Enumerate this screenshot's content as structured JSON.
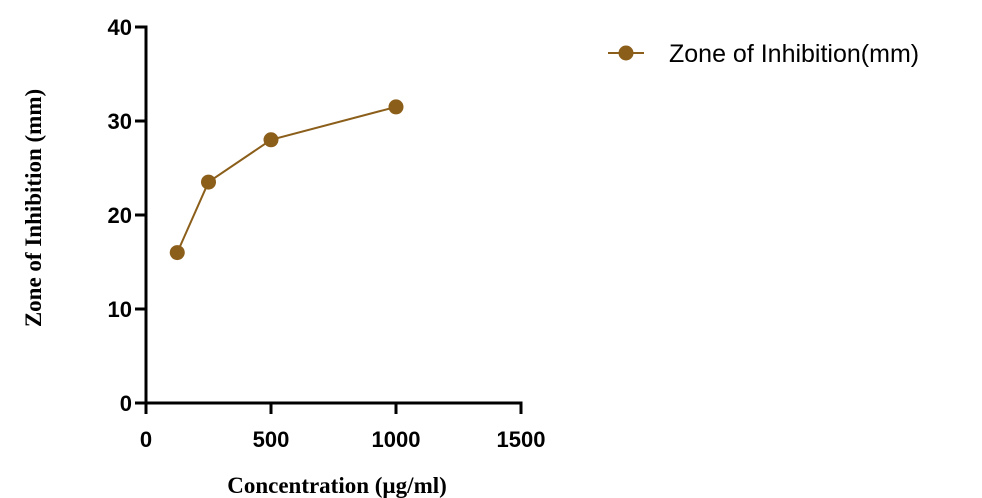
{
  "colors": {
    "series": "#8B5E1A",
    "axis": "#000000"
  },
  "chart_data": {
    "type": "line",
    "title": "",
    "xlabel": "Concentration (µg/ml)",
    "ylabel": "Zone of Inhibition (mm)",
    "xlim": [
      0,
      1500
    ],
    "ylim": [
      0,
      40
    ],
    "xticks": [
      0,
      500,
      1000,
      1500
    ],
    "yticks": [
      0,
      10,
      20,
      30,
      40
    ],
    "xtick_labels": [
      "0",
      "500",
      "1000",
      "1500"
    ],
    "ytick_labels": [
      "0",
      "10",
      "20",
      "30",
      "40"
    ],
    "grid": false,
    "legend_position": "top-right",
    "series": [
      {
        "name": "Zone of Inhibition(mm)",
        "x": [
          125,
          250,
          500,
          1000
        ],
        "y": [
          16,
          23.5,
          28,
          31.5
        ]
      }
    ]
  }
}
